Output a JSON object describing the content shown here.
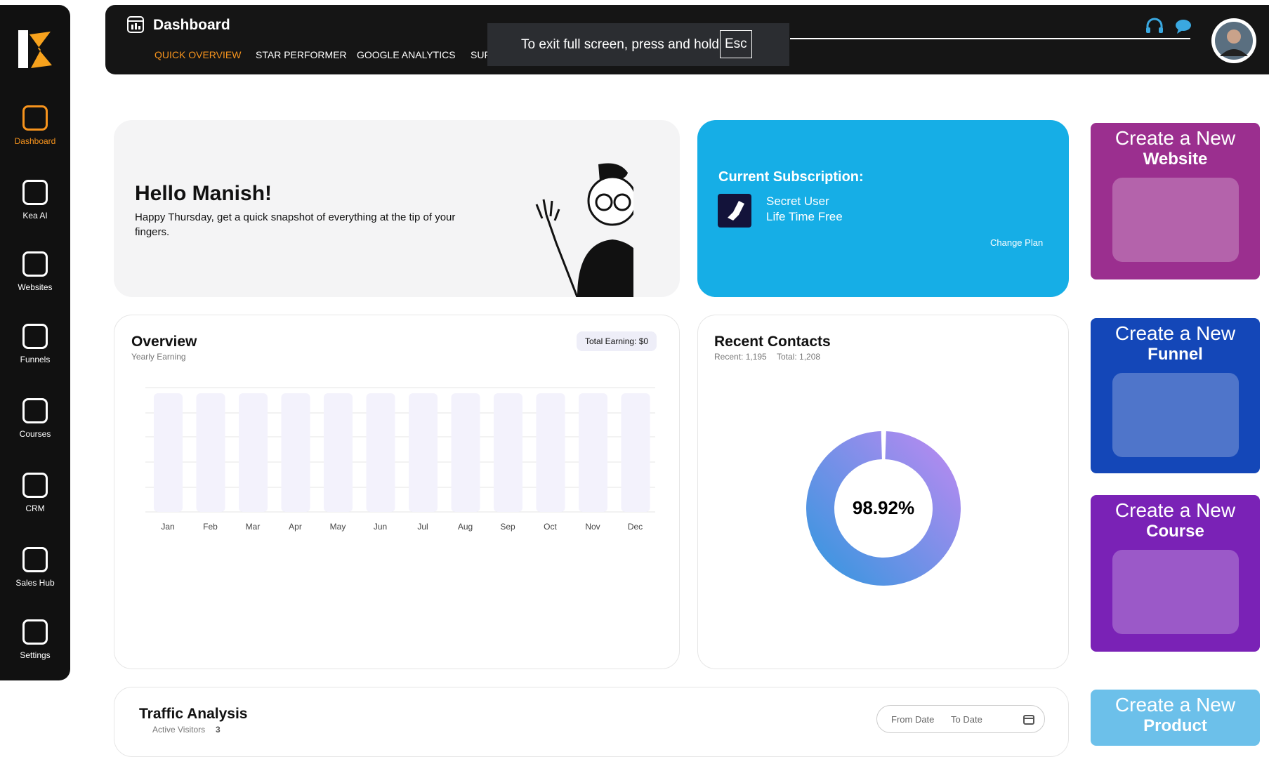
{
  "sidebar": {
    "items": [
      "Dashboard",
      "Kea AI",
      "Websites",
      "Funnels",
      "Courses",
      "CRM",
      "Sales Hub",
      "Settings"
    ]
  },
  "header": {
    "title": "Dashboard",
    "tabs": [
      "QUICK OVERVIEW",
      "STAR PERFORMER",
      "GOOGLE ANALYTICS",
      "SUF"
    ]
  },
  "toast": {
    "text": "To exit full screen, press and hold",
    "key": "Esc"
  },
  "greeting": {
    "title": "Hello Manish!",
    "text": "Happy Thursday, get a quick snapshot of everything at the tip of your fingers."
  },
  "subscription": {
    "title": "Current Subscription:",
    "user": "Secret User",
    "plan": "Life Time Free",
    "action": "Change Plan"
  },
  "overview": {
    "title": "Overview",
    "subtitle": "Yearly Earning",
    "badge": "Total Earning: $0",
    "months": [
      "Jan",
      "Feb",
      "Mar",
      "Apr",
      "May",
      "Jun",
      "Jul",
      "Aug",
      "Sep",
      "Oct",
      "Nov",
      "Dec"
    ]
  },
  "contacts": {
    "title": "Recent Contacts",
    "recent": "Recent: 1,195",
    "total": "Total: 1,208",
    "percent": {
      "value": 98.92,
      "label": "98.92%"
    }
  },
  "traffic": {
    "title": "Traffic Analysis",
    "subtitle": "Active Visitors",
    "count": 3,
    "from": "From Date",
    "to": "To Date"
  },
  "promos": [
    {
      "line1": "Create a New",
      "line2": "Website"
    },
    {
      "line1": "Create a New",
      "line2": "Funnel"
    },
    {
      "line1": "Create a New",
      "line2": "Course"
    },
    {
      "line1": "Create a New",
      "line2": "Product"
    }
  ]
}
